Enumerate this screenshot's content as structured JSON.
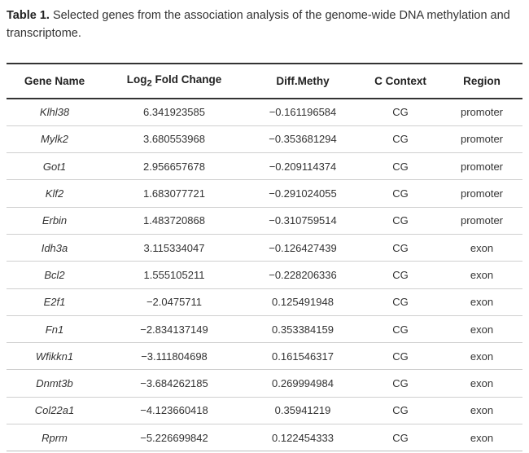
{
  "caption": {
    "label": "Table 1.",
    "text": "Selected genes from the association analysis of the genome-wide DNA methylation and transcriptome."
  },
  "table": {
    "headers": {
      "gene_name": "Gene Name",
      "log2_prefix": "Log",
      "log2_sub": "2",
      "log2_suffix": " Fold Change",
      "diff_methy": "Diff.Methy",
      "c_context": "C Context",
      "region": "Region"
    },
    "rows": [
      {
        "gene": "Klhl38",
        "log2fc": "6.341923585",
        "diff": "−0.161196584",
        "context": "CG",
        "region": "promoter"
      },
      {
        "gene": "Mylk2",
        "log2fc": "3.680553968",
        "diff": "−0.353681294",
        "context": "CG",
        "region": "promoter"
      },
      {
        "gene": "Got1",
        "log2fc": "2.956657678",
        "diff": "−0.209114374",
        "context": "CG",
        "region": "promoter"
      },
      {
        "gene": "Klf2",
        "log2fc": "1.683077721",
        "diff": "−0.291024055",
        "context": "CG",
        "region": "promoter"
      },
      {
        "gene": "Erbin",
        "log2fc": "1.483720868",
        "diff": "−0.310759514",
        "context": "CG",
        "region": "promoter"
      },
      {
        "gene": "Idh3a",
        "log2fc": "3.115334047",
        "diff": "−0.126427439",
        "context": "CG",
        "region": "exon"
      },
      {
        "gene": "Bcl2",
        "log2fc": "1.555105211",
        "diff": "−0.228206336",
        "context": "CG",
        "region": "exon"
      },
      {
        "gene": "E2f1",
        "log2fc": "−2.0475711",
        "diff": "0.125491948",
        "context": "CG",
        "region": "exon"
      },
      {
        "gene": "Fn1",
        "log2fc": "−2.834137149",
        "diff": "0.353384159",
        "context": "CG",
        "region": "exon"
      },
      {
        "gene": "Wfikkn1",
        "log2fc": "−3.111804698",
        "diff": "0.161546317",
        "context": "CG",
        "region": "exon"
      },
      {
        "gene": "Dnmt3b",
        "log2fc": "−3.684262185",
        "diff": "0.269994984",
        "context": "CG",
        "region": "exon"
      },
      {
        "gene": "Col22a1",
        "log2fc": "−4.123660418",
        "diff": "0.35941219",
        "context": "CG",
        "region": "exon"
      },
      {
        "gene": "Rprm",
        "log2fc": "−5.226699842",
        "diff": "0.122454333",
        "context": "CG",
        "region": "exon"
      }
    ]
  }
}
